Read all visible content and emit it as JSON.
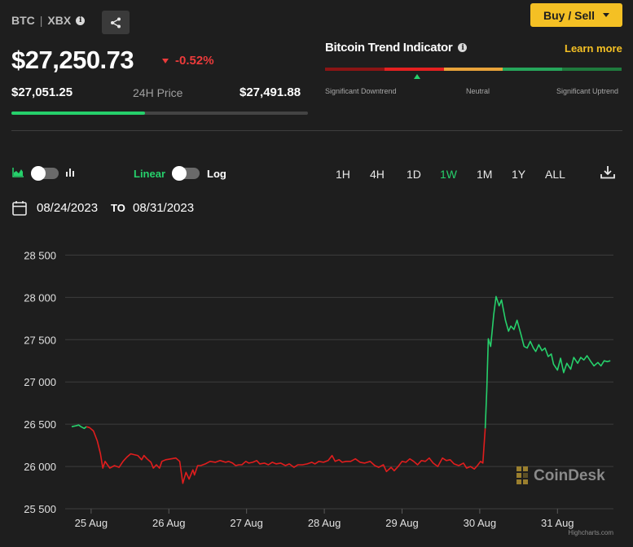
{
  "header": {
    "symbol": "BTC",
    "separator": "|",
    "ticker": "XBX",
    "price": "$27,250.73",
    "change": "-0.52%",
    "low": "$27,051.25",
    "range_label": "24H Price",
    "high": "$27,491.88",
    "range_fill": 0.45,
    "buy_sell_label": "Buy / Sell"
  },
  "trend": {
    "title": "Bitcoin Trend Indicator",
    "learn_more": "Learn more",
    "labels": [
      "Significant Downtrend",
      "Neutral",
      "Significant Uptrend"
    ],
    "segment_colors": [
      "#8b1515",
      "#e42020",
      "#e8a33a",
      "#26a65b",
      "#1f7a3d"
    ],
    "marker_position": 0.31
  },
  "controls": {
    "linear_label": "Linear",
    "log_label": "Log",
    "ranges": [
      "1H",
      "4H",
      "1D",
      "1W",
      "1M",
      "1Y",
      "ALL"
    ],
    "active_range": "1W",
    "date_from": "08/24/2023",
    "to_label": "TO",
    "date_to": "08/31/2023"
  },
  "colors": {
    "up": "#26d06b",
    "down": "#e01d1d",
    "accent": "#f4c024"
  },
  "watermark": "CoinDesk",
  "credit": "Highcharts.com",
  "chart_data": {
    "type": "line",
    "x_ticks": [
      "25 Aug",
      "26 Aug",
      "27 Aug",
      "28 Aug",
      "29 Aug",
      "30 Aug",
      "31 Aug"
    ],
    "y_ticks": [
      25500,
      26000,
      26500,
      27000,
      27500,
      28000,
      28500
    ],
    "y_tick_labels": [
      "25 500",
      "26 000",
      "26 500",
      "27 000",
      "27 500",
      "28 000",
      "28 500"
    ],
    "ylim": [
      25500,
      28600
    ],
    "xlim": [
      24.75,
      31.72
    ],
    "grid": true,
    "series": [
      {
        "color": "#26d06b",
        "points": [
          [
            24.75,
            26470
          ],
          [
            24.8,
            26480
          ],
          [
            24.84,
            26490
          ],
          [
            24.87,
            26470
          ],
          [
            24.91,
            26450
          ],
          [
            24.94,
            26470
          ]
        ]
      },
      {
        "color": "#e01d1d",
        "points": [
          [
            24.94,
            26470
          ],
          [
            24.98,
            26460
          ],
          [
            25.03,
            26420
          ],
          [
            25.08,
            26300
          ],
          [
            25.12,
            26150
          ],
          [
            25.15,
            25980
          ],
          [
            25.18,
            26060
          ],
          [
            25.21,
            26020
          ],
          [
            25.24,
            25980
          ],
          [
            25.3,
            26010
          ],
          [
            25.36,
            25990
          ],
          [
            25.41,
            26060
          ],
          [
            25.46,
            26110
          ],
          [
            25.51,
            26150
          ],
          [
            25.55,
            26140
          ],
          [
            25.6,
            26130
          ],
          [
            25.65,
            26080
          ],
          [
            25.68,
            26130
          ],
          [
            25.72,
            26090
          ],
          [
            25.77,
            26050
          ],
          [
            25.8,
            25980
          ],
          [
            25.84,
            26020
          ],
          [
            25.88,
            25980
          ],
          [
            25.91,
            26060
          ],
          [
            25.96,
            26080
          ],
          [
            26.03,
            26090
          ],
          [
            26.09,
            26100
          ],
          [
            26.14,
            26060
          ],
          [
            26.18,
            25800
          ],
          [
            26.22,
            25930
          ],
          [
            26.26,
            25850
          ],
          [
            26.31,
            25960
          ],
          [
            26.33,
            25900
          ],
          [
            26.37,
            26010
          ],
          [
            26.41,
            26010
          ],
          [
            26.47,
            26030
          ],
          [
            26.53,
            26060
          ],
          [
            26.6,
            26050
          ],
          [
            26.66,
            26070
          ],
          [
            26.73,
            26050
          ],
          [
            26.77,
            26060
          ],
          [
            26.82,
            26040
          ],
          [
            26.86,
            26010
          ],
          [
            26.9,
            26020
          ],
          [
            26.94,
            26020
          ],
          [
            26.99,
            26060
          ],
          [
            27.03,
            26040
          ],
          [
            27.08,
            26050
          ],
          [
            27.13,
            26070
          ],
          [
            27.17,
            26030
          ],
          [
            27.23,
            26040
          ],
          [
            27.28,
            26020
          ],
          [
            27.33,
            26050
          ],
          [
            27.38,
            26030
          ],
          [
            27.44,
            26040
          ],
          [
            27.5,
            26010
          ],
          [
            27.55,
            26030
          ],
          [
            27.61,
            25990
          ],
          [
            27.66,
            26020
          ],
          [
            27.72,
            26020
          ],
          [
            27.78,
            26030
          ],
          [
            27.84,
            26050
          ],
          [
            27.88,
            26030
          ],
          [
            27.93,
            26060
          ],
          [
            27.99,
            26050
          ],
          [
            28.05,
            26070
          ],
          [
            28.1,
            26130
          ],
          [
            28.14,
            26060
          ],
          [
            28.19,
            26080
          ],
          [
            28.23,
            26050
          ],
          [
            28.28,
            26060
          ],
          [
            28.34,
            26060
          ],
          [
            28.4,
            26090
          ],
          [
            28.46,
            26050
          ],
          [
            28.52,
            26040
          ],
          [
            28.59,
            26060
          ],
          [
            28.65,
            26010
          ],
          [
            28.7,
            25990
          ],
          [
            28.76,
            26020
          ],
          [
            28.8,
            25940
          ],
          [
            28.86,
            25990
          ],
          [
            28.9,
            25950
          ],
          [
            28.95,
            26000
          ],
          [
            29.0,
            26060
          ],
          [
            29.05,
            26050
          ],
          [
            29.1,
            26090
          ],
          [
            29.15,
            26060
          ],
          [
            29.2,
            26020
          ],
          [
            29.25,
            26070
          ],
          [
            29.3,
            26060
          ],
          [
            29.35,
            26100
          ],
          [
            29.4,
            26040
          ],
          [
            29.46,
            26000
          ],
          [
            29.52,
            26100
          ],
          [
            29.57,
            26070
          ],
          [
            29.62,
            26080
          ],
          [
            29.67,
            26030
          ],
          [
            29.73,
            26010
          ],
          [
            29.79,
            26040
          ],
          [
            29.83,
            25980
          ],
          [
            29.88,
            26000
          ],
          [
            29.93,
            25970
          ],
          [
            29.97,
            26010
          ],
          [
            30.01,
            26060
          ],
          [
            30.04,
            26040
          ],
          [
            30.07,
            26450
          ]
        ]
      },
      {
        "color": "#26d06b",
        "points": [
          [
            30.07,
            26450
          ],
          [
            30.09,
            26900
          ],
          [
            30.11,
            27510
          ],
          [
            30.14,
            27420
          ],
          [
            30.18,
            27800
          ],
          [
            30.21,
            28010
          ],
          [
            30.25,
            27900
          ],
          [
            30.28,
            27970
          ],
          [
            30.33,
            27730
          ],
          [
            30.37,
            27600
          ],
          [
            30.4,
            27660
          ],
          [
            30.44,
            27620
          ],
          [
            30.48,
            27730
          ],
          [
            30.53,
            27560
          ],
          [
            30.57,
            27420
          ],
          [
            30.61,
            27400
          ],
          [
            30.65,
            27480
          ],
          [
            30.69,
            27400
          ],
          [
            30.72,
            27360
          ],
          [
            30.76,
            27440
          ],
          [
            30.8,
            27370
          ],
          [
            30.84,
            27400
          ],
          [
            30.88,
            27300
          ],
          [
            30.92,
            27330
          ],
          [
            30.95,
            27210
          ],
          [
            31.0,
            27140
          ],
          [
            31.04,
            27280
          ],
          [
            31.08,
            27110
          ],
          [
            31.12,
            27220
          ],
          [
            31.17,
            27150
          ],
          [
            31.21,
            27290
          ],
          [
            31.26,
            27220
          ],
          [
            31.3,
            27290
          ],
          [
            31.34,
            27260
          ],
          [
            31.38,
            27310
          ],
          [
            31.43,
            27240
          ],
          [
            31.47,
            27190
          ],
          [
            31.52,
            27230
          ],
          [
            31.56,
            27190
          ],
          [
            31.6,
            27250
          ],
          [
            31.64,
            27240
          ],
          [
            31.68,
            27250
          ]
        ]
      }
    ]
  }
}
